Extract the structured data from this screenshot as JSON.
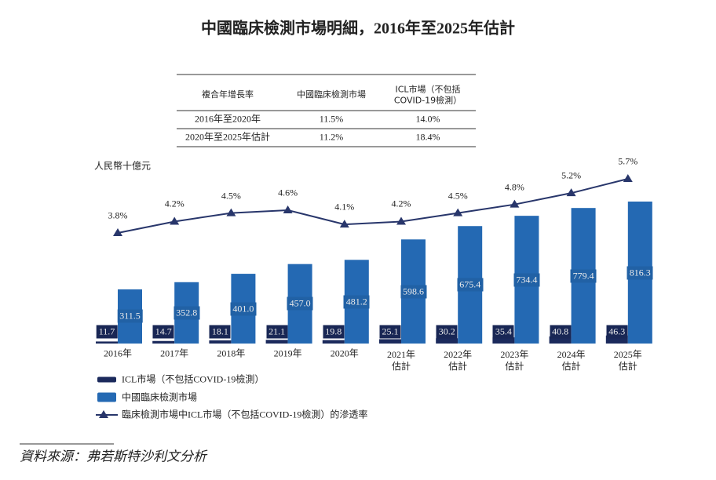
{
  "chart_data": {
    "type": "bar",
    "title": "中國臨床檢測市場明細，2016年至2025年估計",
    "y_label": "人民幣十億元",
    "categories": [
      "2016年",
      "2017年",
      "2018年",
      "2019年",
      "2020年",
      "2021年\n估計",
      "2022年\n估計",
      "2023年\n估計",
      "2024年\n估計",
      "2025年\n估計"
    ],
    "series": [
      {
        "name": "ICL市場（不包括COVID-19檢測）",
        "color": "#1b2a5c",
        "values": [
          11.7,
          14.7,
          18.1,
          21.1,
          19.8,
          25.1,
          30.2,
          35.4,
          40.8,
          46.3
        ]
      },
      {
        "name": "中國臨床檢測市場",
        "color": "#2469b3",
        "values": [
          311.5,
          352.8,
          401.0,
          457.0,
          481.2,
          598.6,
          675.4,
          734.4,
          779.4,
          816.3
        ],
        "value_labels": [
          "311.5",
          "352.8",
          "401.0",
          "457.0",
          "481.2",
          "598.6",
          "675.4",
          "734.4",
          "779.4",
          "816.3"
        ]
      },
      {
        "name": "臨床檢測市場中ICL市場（不包括COVID-19檢測）的滲透率",
        "type": "line",
        "color": "#28366b",
        "values": [
          3.8,
          4.2,
          4.5,
          4.6,
          4.1,
          4.2,
          4.5,
          4.8,
          5.2,
          5.7
        ],
        "value_labels": [
          "3.8%",
          "4.2%",
          "4.5%",
          "4.6%",
          "4.1%",
          "4.2%",
          "4.5%",
          "4.8%",
          "5.2%",
          "5.7%"
        ]
      }
    ]
  },
  "table": {
    "header": [
      "複合年增長率",
      "中國臨床檢測市場",
      "ICL市場（不包括\nCOVID-19檢測）"
    ],
    "rows": [
      [
        "2016年至2020年",
        "11.5%",
        "14.0%"
      ],
      [
        "2020年至2025年估計",
        "11.2%",
        "18.4%"
      ]
    ]
  },
  "source": "資料來源：弗若斯特沙利文分析"
}
